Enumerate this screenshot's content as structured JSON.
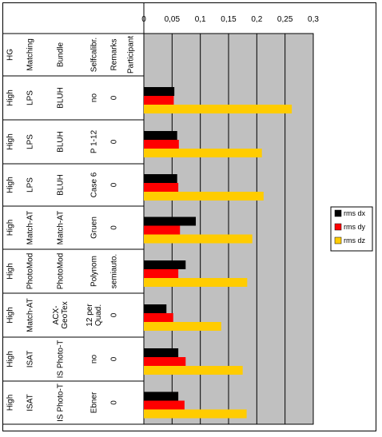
{
  "chart_data": {
    "type": "bar",
    "orientation": "horizontal",
    "xlim": [
      0,
      0.3
    ],
    "x_ticks": [
      "0",
      "0,05",
      "0,1",
      "0,15",
      "0,2",
      "0,25",
      "0,3"
    ],
    "plot_background": "#c0c0c0",
    "grid": true,
    "legend_position": "right",
    "table_headers": [
      "HG",
      "Matching",
      "Bundle",
      "Selfcalibr.",
      "Remarks",
      "Participant"
    ],
    "rows": [
      {
        "hg": "High",
        "matching": "LPS",
        "bundle": "BLUH",
        "selfcalibr": "no",
        "remarks": "0",
        "participant": ""
      },
      {
        "hg": "High",
        "matching": "LPS",
        "bundle": "BLUH",
        "selfcalibr": "P 1-12",
        "remarks": "0",
        "participant": ""
      },
      {
        "hg": "High",
        "matching": "LPS",
        "bundle": "BLUH",
        "selfcalibr": "Case 6",
        "remarks": "0",
        "participant": ""
      },
      {
        "hg": "High",
        "matching": "Match-AT",
        "bundle": "Match-AT",
        "selfcalibr": "Gruen",
        "remarks": "0",
        "participant": ""
      },
      {
        "hg": "High",
        "matching": "PhotoMod",
        "bundle": "PhotoMod",
        "selfcalibr": "Polynom",
        "remarks": "semiauto.",
        "participant": ""
      },
      {
        "hg": "High",
        "matching": "Match-AT",
        "bundle": "ACX-\nGeoTex",
        "selfcalibr": "12 per\nQuad.",
        "remarks": "0",
        "participant": ""
      },
      {
        "hg": "High",
        "matching": "ISAT",
        "bundle": "IS Photo-T",
        "selfcalibr": "no",
        "remarks": "0",
        "participant": ""
      },
      {
        "hg": "High",
        "matching": "ISAT",
        "bundle": "IS Photo-T",
        "selfcalibr": "Ebner",
        "remarks": "0",
        "participant": ""
      }
    ],
    "series": [
      {
        "name": "rms dx",
        "color": "#000000",
        "values": [
          0.054,
          0.059,
          0.059,
          0.092,
          0.074,
          0.04,
          0.061,
          0.061
        ]
      },
      {
        "name": "rms dy",
        "color": "#ff0000",
        "values": [
          0.053,
          0.062,
          0.061,
          0.064,
          0.061,
          0.052,
          0.074,
          0.072
        ]
      },
      {
        "name": "rms dz",
        "color": "#ffcc00",
        "values": [
          0.262,
          0.209,
          0.212,
          0.192,
          0.183,
          0.137,
          0.175,
          0.182
        ]
      }
    ]
  }
}
